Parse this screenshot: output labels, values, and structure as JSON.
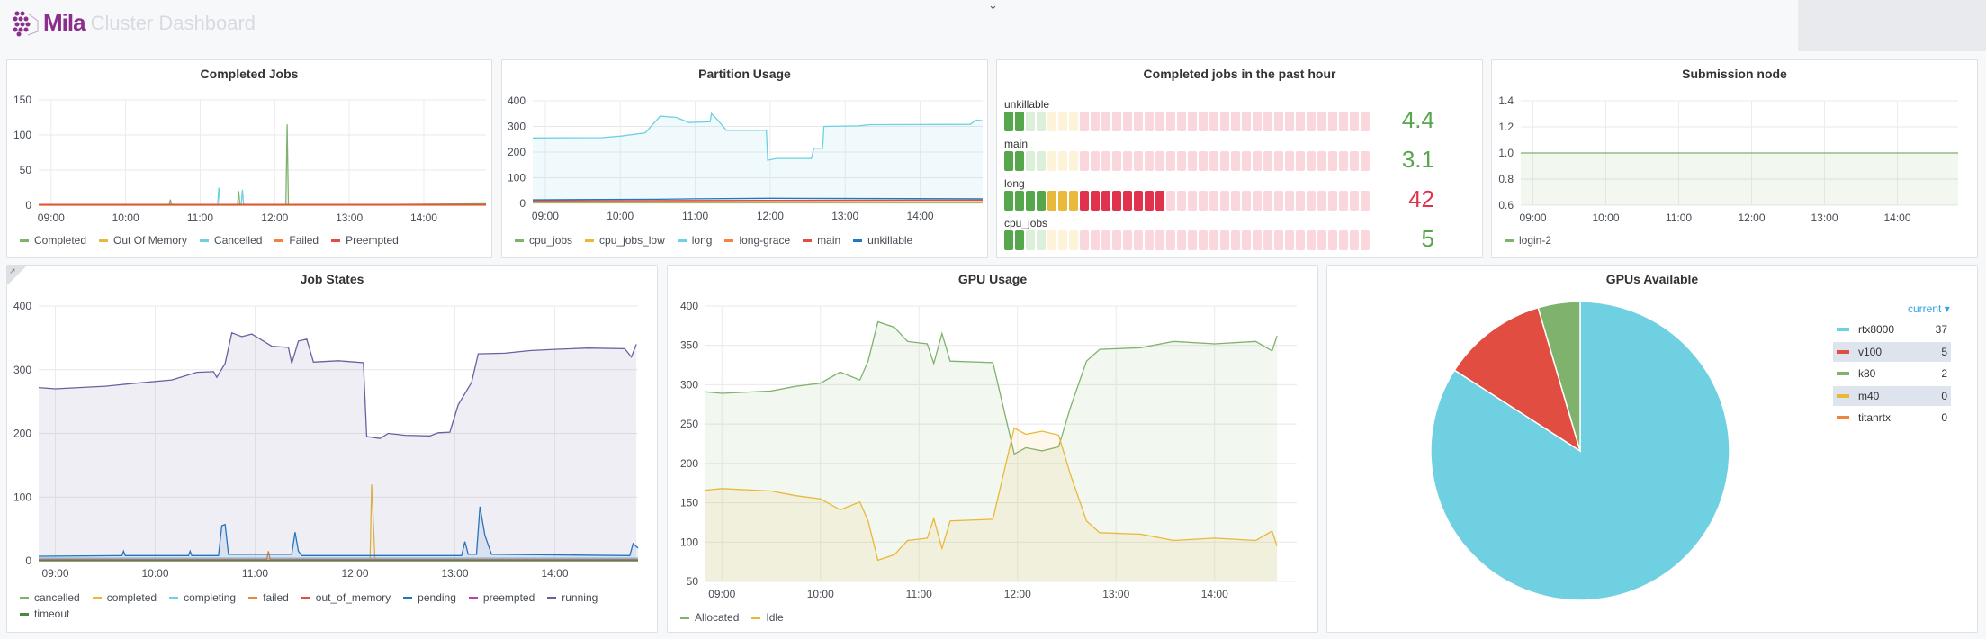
{
  "header": {
    "logo_text": "Mila",
    "title": "Cluster Dashboard",
    "chevron_icon": "chevron-down-icon"
  },
  "x_ticks": [
    "09:00",
    "10:00",
    "11:00",
    "12:00",
    "13:00",
    "14:00"
  ],
  "completed_jobs": {
    "title": "Completed Jobs",
    "type": "line",
    "ylim": [
      0,
      150
    ],
    "yticks": [
      0,
      50,
      100,
      150
    ],
    "series": [
      {
        "name": "Completed",
        "color": "#7eb26d",
        "points": [
          [
            "08:50",
            0
          ],
          [
            "10:35",
            0
          ],
          [
            "10:36",
            8
          ],
          [
            "10:37",
            0
          ],
          [
            "11:30",
            0
          ],
          [
            "11:31",
            20
          ],
          [
            "11:32",
            0
          ],
          [
            "12:09",
            0
          ],
          [
            "12:10",
            115
          ],
          [
            "12:11",
            0
          ],
          [
            "14:50",
            2
          ]
        ]
      },
      {
        "name": "Out Of Memory",
        "color": "#eab839",
        "points": [
          [
            "08:50",
            0
          ],
          [
            "14:50",
            0
          ]
        ]
      },
      {
        "name": "Cancelled",
        "color": "#6ed0e0",
        "points": [
          [
            "08:50",
            0
          ],
          [
            "11:14",
            0
          ],
          [
            "11:15",
            25
          ],
          [
            "11:16",
            0
          ],
          [
            "11:33",
            0
          ],
          [
            "11:34",
            22
          ],
          [
            "11:35",
            0
          ],
          [
            "14:50",
            0
          ]
        ]
      },
      {
        "name": "Failed",
        "color": "#ef843c",
        "points": [
          [
            "08:50",
            0
          ],
          [
            "14:50",
            0
          ]
        ]
      },
      {
        "name": "Preempted",
        "color": "#e24d42",
        "points": [
          [
            "08:50",
            1
          ],
          [
            "14:50",
            1
          ]
        ]
      }
    ]
  },
  "partition_usage": {
    "title": "Partition Usage",
    "type": "line",
    "ylim": [
      0,
      400
    ],
    "yticks": [
      0,
      100,
      200,
      300,
      400
    ],
    "series": [
      {
        "name": "cpu_jobs",
        "color": "#7eb26d",
        "points": [
          [
            "08:50",
            2
          ],
          [
            "14:50",
            2
          ]
        ]
      },
      {
        "name": "cpu_jobs_low",
        "color": "#eab839",
        "points": [
          [
            "08:50",
            4
          ],
          [
            "14:50",
            4
          ]
        ]
      },
      {
        "name": "long",
        "color": "#6ed0e0",
        "fill": true,
        "points": [
          [
            "08:50",
            255
          ],
          [
            "09:45",
            256
          ],
          [
            "10:00",
            262
          ],
          [
            "10:20",
            275
          ],
          [
            "10:32",
            340
          ],
          [
            "10:45",
            335
          ],
          [
            "10:55",
            315
          ],
          [
            "11:12",
            318
          ],
          [
            "11:13",
            350
          ],
          [
            "11:18",
            325
          ],
          [
            "11:25",
            285
          ],
          [
            "11:57",
            285
          ],
          [
            "11:58",
            168
          ],
          [
            "12:05",
            175
          ],
          [
            "12:33",
            175
          ],
          [
            "12:35",
            215
          ],
          [
            "12:42",
            215
          ],
          [
            "12:43",
            300
          ],
          [
            "13:10",
            302
          ],
          [
            "13:20",
            307
          ],
          [
            "14:40",
            308
          ],
          [
            "14:45",
            325
          ],
          [
            "14:50",
            322
          ]
        ]
      },
      {
        "name": "long-grace",
        "color": "#ef843c",
        "points": [
          [
            "08:50",
            6
          ],
          [
            "14:50",
            6
          ]
        ]
      },
      {
        "name": "main",
        "color": "#e24d42",
        "points": [
          [
            "08:50",
            10
          ],
          [
            "12:00",
            12
          ],
          [
            "14:50",
            13
          ]
        ]
      },
      {
        "name": "unkillable",
        "color": "#1f78c1",
        "points": [
          [
            "08:50",
            14
          ],
          [
            "10:30",
            16
          ],
          [
            "11:00",
            18
          ],
          [
            "12:00",
            20
          ],
          [
            "14:50",
            18
          ]
        ]
      }
    ]
  },
  "past_hour": {
    "title": "Completed jobs in the past hour",
    "max": 100,
    "cells": 34,
    "colors": {
      "green": "#56a64b",
      "yellow": "#e8b93a",
      "red": "#e0324c",
      "green_dim": "#dcefd9",
      "yellow_dim": "#fcf3d9",
      "red_dim": "#fad7dc"
    },
    "rows": [
      {
        "label": "unkillable",
        "value": "4.4",
        "color": "#56a64b"
      },
      {
        "label": "main",
        "value": "3.1",
        "color": "#56a64b"
      },
      {
        "label": "long",
        "value": "42",
        "color": "#e0324c"
      },
      {
        "label": "cpu_jobs",
        "value": "5",
        "color": "#56a64b"
      }
    ]
  },
  "submission_node": {
    "title": "Submission node",
    "type": "line",
    "ylim": [
      0.6,
      1.4
    ],
    "yticks": [
      "0.6",
      "0.8",
      "1.0",
      "1.2",
      "1.4"
    ],
    "series": [
      {
        "name": "login-2",
        "color": "#7eb26d",
        "fill": true,
        "points": [
          [
            "08:50",
            1
          ],
          [
            "14:50",
            1
          ]
        ]
      }
    ]
  },
  "job_states": {
    "title": "Job States",
    "type": "line",
    "ylim": [
      0,
      400
    ],
    "yticks": [
      0,
      100,
      200,
      300,
      400
    ],
    "series": [
      {
        "name": "cancelled",
        "color": "#7eb26d",
        "points": [
          [
            "08:50",
            1
          ],
          [
            "14:50",
            1
          ]
        ]
      },
      {
        "name": "completed",
        "color": "#eab839",
        "points": [
          [
            "08:50",
            1
          ],
          [
            "12:09",
            1
          ],
          [
            "12:10",
            120
          ],
          [
            "12:12",
            1
          ],
          [
            "14:50",
            1
          ]
        ]
      },
      {
        "name": "completing",
        "color": "#6ed0e0",
        "points": [
          [
            "08:50",
            4
          ],
          [
            "14:50",
            4
          ]
        ]
      },
      {
        "name": "failed",
        "color": "#ef843c",
        "points": [
          [
            "08:50",
            2
          ],
          [
            "11:07",
            2
          ],
          [
            "11:08",
            15
          ],
          [
            "11:09",
            2
          ],
          [
            "14:50",
            2
          ]
        ]
      },
      {
        "name": "out_of_memory",
        "color": "#e24d42",
        "points": [
          [
            "08:50",
            1
          ],
          [
            "14:50",
            1
          ]
        ]
      },
      {
        "name": "pending",
        "color": "#1f78c1",
        "fill": true,
        "points": [
          [
            "08:50",
            7
          ],
          [
            "09:40",
            8
          ],
          [
            "09:41",
            15
          ],
          [
            "09:42",
            8
          ],
          [
            "10:20",
            8
          ],
          [
            "10:21",
            15
          ],
          [
            "10:22",
            8
          ],
          [
            "10:38",
            8
          ],
          [
            "10:40",
            55
          ],
          [
            "10:42",
            57
          ],
          [
            "10:44",
            10
          ],
          [
            "11:22",
            10
          ],
          [
            "11:24",
            45
          ],
          [
            "11:26",
            15
          ],
          [
            "11:28",
            8
          ],
          [
            "13:04",
            8
          ],
          [
            "13:06",
            30
          ],
          [
            "13:08",
            10
          ],
          [
            "13:13",
            10
          ],
          [
            "13:15",
            85
          ],
          [
            "13:18",
            40
          ],
          [
            "13:22",
            10
          ],
          [
            "14:45",
            8
          ],
          [
            "14:47",
            27
          ],
          [
            "14:50",
            20
          ]
        ]
      },
      {
        "name": "preempted",
        "color": "#ba43a9",
        "points": [
          [
            "08:50",
            0
          ],
          [
            "14:50",
            0
          ]
        ]
      },
      {
        "name": "running",
        "color": "#705da0",
        "fill": true,
        "points": [
          [
            "08:50",
            272
          ],
          [
            "09:00",
            270
          ],
          [
            "09:30",
            274
          ],
          [
            "09:45",
            278
          ],
          [
            "10:10",
            284
          ],
          [
            "10:25",
            296
          ],
          [
            "10:35",
            297
          ],
          [
            "10:37",
            288
          ],
          [
            "10:42",
            310
          ],
          [
            "10:46",
            358
          ],
          [
            "10:52",
            352
          ],
          [
            "10:58",
            356
          ],
          [
            "11:05",
            345
          ],
          [
            "11:10",
            337
          ],
          [
            "11:20",
            335
          ],
          [
            "11:22",
            310
          ],
          [
            "11:26",
            345
          ],
          [
            "11:31",
            348
          ],
          [
            "11:35",
            312
          ],
          [
            "11:50",
            314
          ],
          [
            "12:05",
            311
          ],
          [
            "12:07",
            195
          ],
          [
            "12:15",
            192
          ],
          [
            "12:20",
            200
          ],
          [
            "12:30",
            197
          ],
          [
            "12:45",
            196
          ],
          [
            "12:50",
            201
          ],
          [
            "12:57",
            202
          ],
          [
            "13:02",
            245
          ],
          [
            "13:10",
            280
          ],
          [
            "13:14",
            325
          ],
          [
            "13:30",
            326
          ],
          [
            "13:45",
            330
          ],
          [
            "14:00",
            332
          ],
          [
            "14:20",
            334
          ],
          [
            "14:42",
            333
          ],
          [
            "14:46",
            320
          ],
          [
            "14:49",
            340
          ]
        ]
      },
      {
        "name": "timeout",
        "color": "#508642",
        "points": [
          [
            "08:50",
            0
          ],
          [
            "14:50",
            0
          ]
        ]
      }
    ]
  },
  "gpu_usage": {
    "title": "GPU Usage",
    "type": "line",
    "ylim": [
      50,
      400
    ],
    "yticks": [
      50,
      100,
      150,
      200,
      250,
      300,
      350,
      400
    ],
    "series": [
      {
        "name": "Allocated",
        "color": "#7eb26d",
        "fill": true,
        "points": [
          [
            "08:50",
            291
          ],
          [
            "09:00",
            289
          ],
          [
            "09:30",
            292
          ],
          [
            "09:45",
            298
          ],
          [
            "10:00",
            302
          ],
          [
            "10:12",
            316
          ],
          [
            "10:24",
            306
          ],
          [
            "10:29",
            330
          ],
          [
            "10:35",
            380
          ],
          [
            "10:45",
            373
          ],
          [
            "10:53",
            355
          ],
          [
            "11:05",
            352
          ],
          [
            "11:09",
            327
          ],
          [
            "11:14",
            365
          ],
          [
            "11:19",
            330
          ],
          [
            "11:45",
            328
          ],
          [
            "11:58",
            212
          ],
          [
            "12:05",
            220
          ],
          [
            "12:15",
            216
          ],
          [
            "12:25",
            221
          ],
          [
            "12:32",
            270
          ],
          [
            "12:42",
            330
          ],
          [
            "12:50",
            345
          ],
          [
            "13:15",
            347
          ],
          [
            "13:35",
            355
          ],
          [
            "14:00",
            352
          ],
          [
            "14:25",
            355
          ],
          [
            "14:35",
            343
          ],
          [
            "14:38",
            362
          ]
        ]
      },
      {
        "name": "Idle",
        "color": "#eab839",
        "fill": true,
        "points": [
          [
            "08:50",
            166
          ],
          [
            "09:00",
            168
          ],
          [
            "09:30",
            165
          ],
          [
            "09:45",
            159
          ],
          [
            "10:00",
            155
          ],
          [
            "10:12",
            141
          ],
          [
            "10:24",
            151
          ],
          [
            "10:29",
            127
          ],
          [
            "10:35",
            77
          ],
          [
            "10:45",
            84
          ],
          [
            "10:53",
            102
          ],
          [
            "11:05",
            105
          ],
          [
            "11:09",
            130
          ],
          [
            "11:14",
            92
          ],
          [
            "11:19",
            127
          ],
          [
            "11:45",
            129
          ],
          [
            "11:58",
            245
          ],
          [
            "12:05",
            237
          ],
          [
            "12:15",
            241
          ],
          [
            "12:25",
            236
          ],
          [
            "12:32",
            187
          ],
          [
            "12:42",
            127
          ],
          [
            "12:50",
            112
          ],
          [
            "13:15",
            110
          ],
          [
            "13:35",
            102
          ],
          [
            "14:00",
            105
          ],
          [
            "14:25",
            102
          ],
          [
            "14:35",
            114
          ],
          [
            "14:38",
            95
          ]
        ]
      }
    ]
  },
  "gpus_available": {
    "title": "GPUs Available",
    "type": "pie",
    "legend_header": "current",
    "slices": [
      {
        "name": "rtx8000",
        "value": 37,
        "color": "#6ed0e0"
      },
      {
        "name": "v100",
        "value": 5,
        "color": "#e24d42"
      },
      {
        "name": "k80",
        "value": 2,
        "color": "#7eb26d"
      },
      {
        "name": "m40",
        "value": 0,
        "color": "#eab839"
      },
      {
        "name": "titanrtx",
        "value": 0,
        "color": "#ef843c"
      }
    ]
  }
}
